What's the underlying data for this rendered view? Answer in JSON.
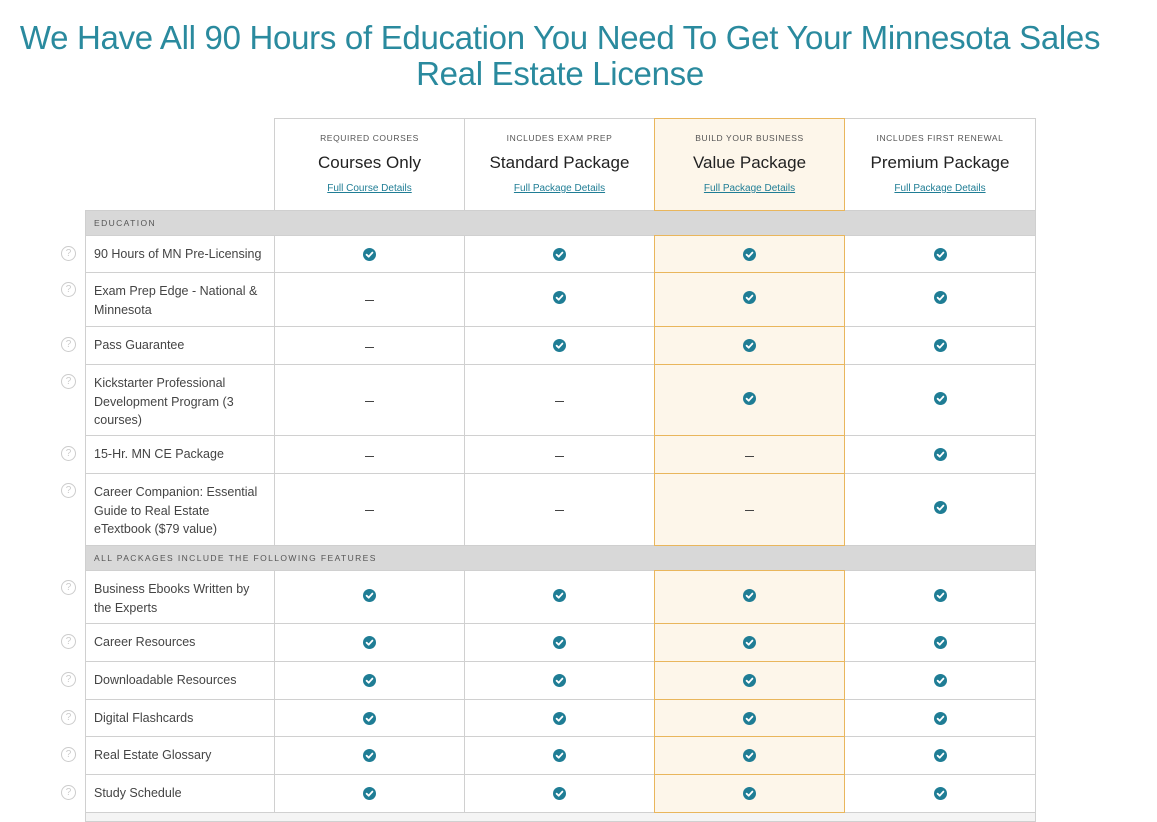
{
  "title": "We Have All 90 Hours of Education You Need To Get Your Minnesota Sales Real Estate License",
  "colors": {
    "accent": "#1f7d95",
    "highlight_bg": "#fdf6ea",
    "highlight_border": "#e9b65c"
  },
  "packages": [
    {
      "eyebrow": "Required Courses",
      "name": "Courses Only",
      "link": "Full Course Details",
      "highlighted": false
    },
    {
      "eyebrow": "Includes Exam Prep",
      "name": "Standard Package",
      "link": "Full Package Details",
      "highlighted": false
    },
    {
      "eyebrow": "Build Your Business",
      "name": "Value Package",
      "link": "Full Package Details",
      "highlighted": true
    },
    {
      "eyebrow": "Includes First Renewal",
      "name": "Premium Package",
      "link": "Full Package Details",
      "highlighted": false
    }
  ],
  "sections": [
    {
      "title": "Education",
      "rows": [
        {
          "label": "90 Hours of MN Pre-Licensing",
          "values": [
            true,
            true,
            true,
            true
          ]
        },
        {
          "label": "Exam Prep Edge - National & Minnesota",
          "values": [
            false,
            true,
            true,
            true
          ]
        },
        {
          "label": "Pass Guarantee",
          "values": [
            false,
            true,
            true,
            true
          ]
        },
        {
          "label": "Kickstarter Professional Development Program (3 courses)",
          "values": [
            false,
            false,
            true,
            true
          ]
        },
        {
          "label": "15-Hr. MN CE Package",
          "values": [
            false,
            false,
            false,
            true
          ]
        },
        {
          "label": "Career Companion: Essential Guide to Real Estate eTextbook ($79 value)",
          "values": [
            false,
            false,
            false,
            true
          ]
        }
      ]
    },
    {
      "title": "All Packages Include the Following Features",
      "rows": [
        {
          "label": "Business Ebooks Written by the Experts",
          "values": [
            true,
            true,
            true,
            true
          ]
        },
        {
          "label": "Career Resources",
          "values": [
            true,
            true,
            true,
            true
          ]
        },
        {
          "label": "Downloadable Resources",
          "values": [
            true,
            true,
            true,
            true
          ]
        },
        {
          "label": "Digital Flashcards",
          "values": [
            true,
            true,
            true,
            true
          ]
        },
        {
          "label": "Real Estate Glossary",
          "values": [
            true,
            true,
            true,
            true
          ]
        },
        {
          "label": "Study Schedule",
          "values": [
            true,
            true,
            true,
            true
          ]
        }
      ]
    }
  ]
}
